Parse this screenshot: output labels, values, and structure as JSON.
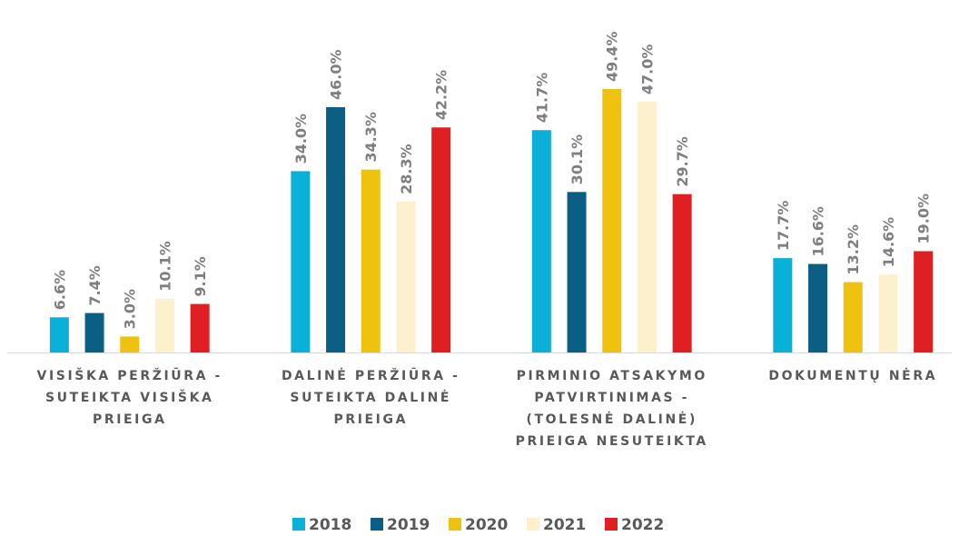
{
  "chart_data": {
    "type": "bar",
    "categories": [
      "VISIŠKA PERŽIŪRA - SUTEIKTA VISIŠKA PRIEIGA",
      "DALINĖ PERŽIŪRA - SUTEIKTA DALINĖ PRIEIGA",
      "PIRMINIO ATSAKYMO PATVIRTINIMAS - (TOLESNĖ DALINĖ) PRIEIGA NESUTEIKTA",
      "DOKUMENTŲ NĖRA"
    ],
    "series": [
      {
        "name": "2018",
        "color": "#0bb0d8",
        "values": [
          6.6,
          34.0,
          41.7,
          17.7
        ],
        "value_labels": [
          "6.6%",
          "34.0%",
          "41.7%",
          "17.7%"
        ]
      },
      {
        "name": "2019",
        "color": "#0b5f85",
        "values": [
          7.4,
          46.0,
          30.1,
          16.6
        ],
        "value_labels": [
          "7.4%",
          "46.0%",
          "30.1%",
          "16.6%"
        ]
      },
      {
        "name": "2020",
        "color": "#efc20f",
        "values": [
          3.0,
          34.3,
          49.4,
          13.2
        ],
        "value_labels": [
          "3.0%",
          "34.3%",
          "49.4%",
          "13.2%"
        ]
      },
      {
        "name": "2021",
        "color": "#fdf0cd",
        "values": [
          10.1,
          28.3,
          47.0,
          14.6
        ],
        "value_labels": [
          "10.1%",
          "28.3%",
          "47.0%",
          "14.6%"
        ]
      },
      {
        "name": "2022",
        "color": "#e01f22",
        "values": [
          9.1,
          42.2,
          29.7,
          19.0
        ],
        "value_labels": [
          "9.1%",
          "42.2%",
          "29.7%",
          "19.0%"
        ]
      }
    ],
    "legend": "bottom"
  }
}
